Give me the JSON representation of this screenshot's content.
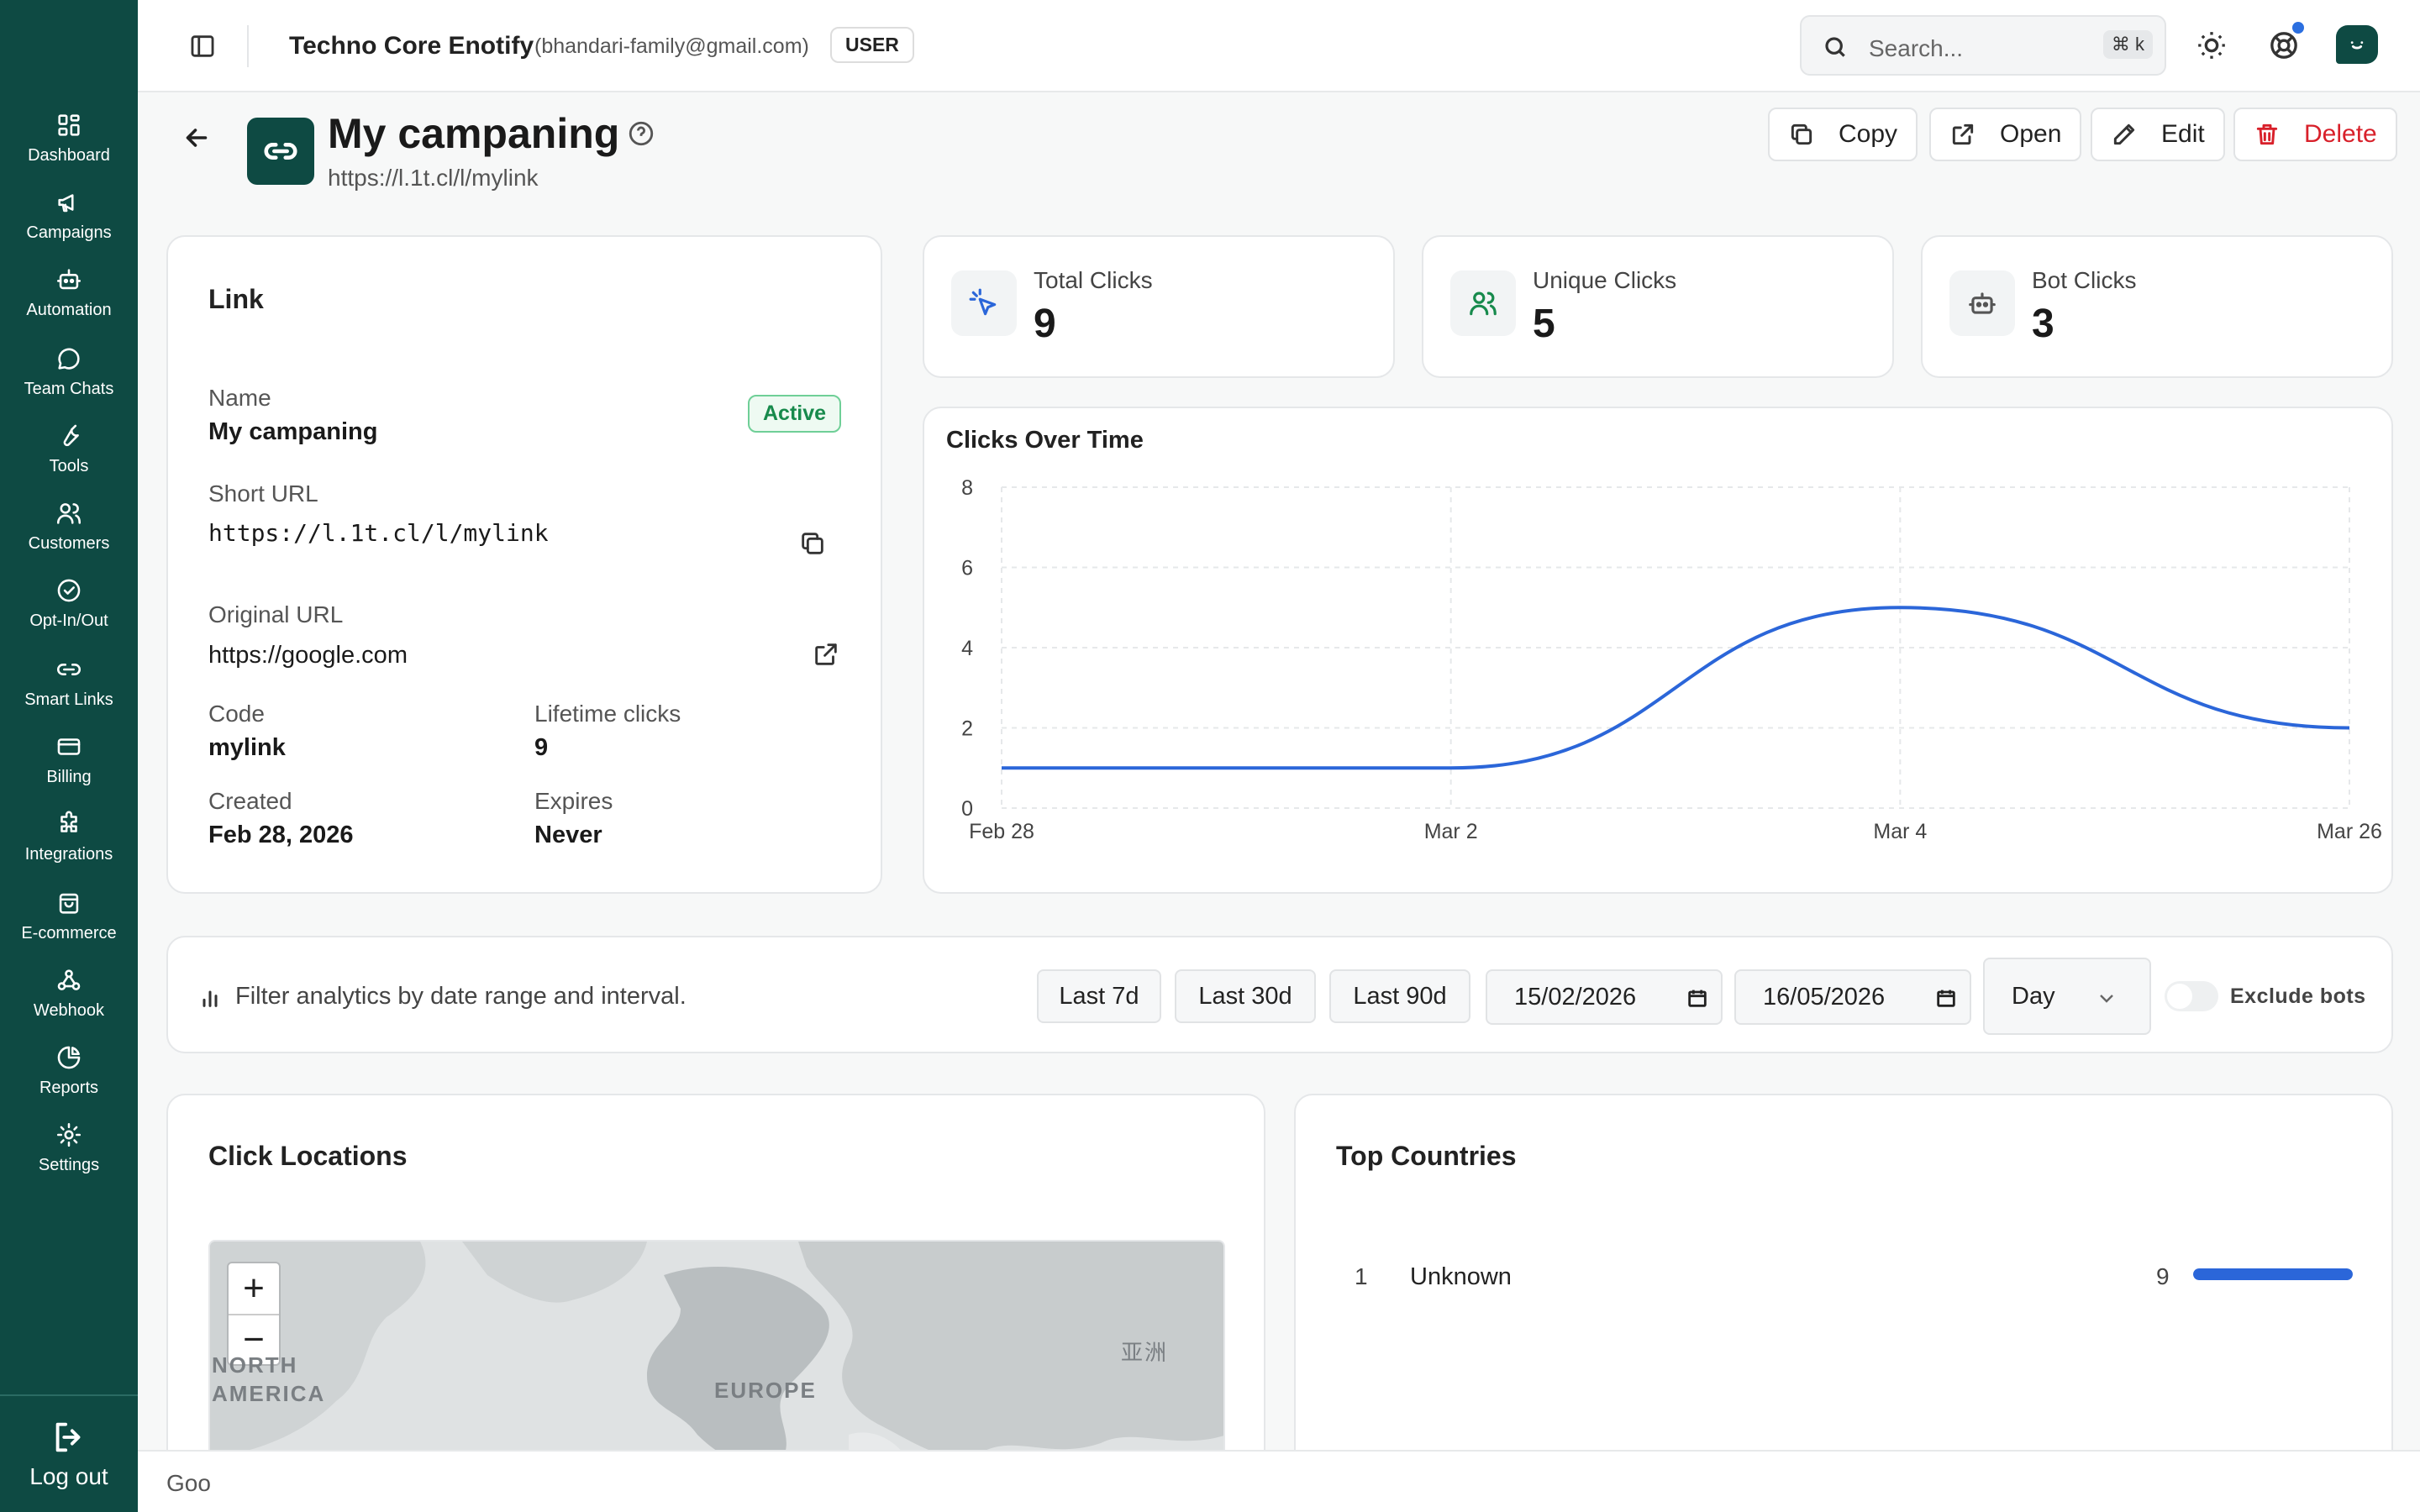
{
  "sidebar": {
    "items": [
      {
        "label": "Dashboard",
        "icon": "dashboard-icon"
      },
      {
        "label": "Campaigns",
        "icon": "megaphone-icon"
      },
      {
        "label": "Automation",
        "icon": "bot-icon"
      },
      {
        "label": "Team Chats",
        "icon": "chat-bubble-icon"
      },
      {
        "label": "Tools",
        "icon": "wrench-icon"
      },
      {
        "label": "Customers",
        "icon": "users-icon"
      },
      {
        "label": "Opt-In/Out",
        "icon": "check-circle-icon"
      },
      {
        "label": "Smart Links",
        "icon": "link-icon"
      },
      {
        "label": "Billing",
        "icon": "credit-card-icon"
      },
      {
        "label": "Integrations",
        "icon": "puzzle-icon"
      },
      {
        "label": "E-commerce",
        "icon": "shopping-bag-icon"
      },
      {
        "label": "Webhook",
        "icon": "webhook-icon"
      },
      {
        "label": "Reports",
        "icon": "pie-chart-icon"
      },
      {
        "label": "Settings",
        "icon": "gear-icon"
      }
    ],
    "logout_label": "Log out"
  },
  "header": {
    "org_name": "Techno Core Enotify",
    "org_email": "(bhandari-family@gmail.com)",
    "role": "USER",
    "search_placeholder": "Search...",
    "search_shortcut": "⌘ k"
  },
  "page": {
    "title": "My campaning",
    "url": "https://l.1t.cl/l/mylink",
    "actions": {
      "copy": "Copy",
      "open": "Open",
      "edit": "Edit",
      "delete": "Delete"
    }
  },
  "link_card": {
    "title": "Link",
    "status": "Active",
    "name_label": "Name",
    "name_value": "My campaning",
    "short_url_label": "Short URL",
    "short_url_value": "https://l.1t.cl/l/mylink",
    "original_url_label": "Original URL",
    "original_url_value": "https://google.com",
    "code_label": "Code",
    "code_value": "mylink",
    "lifetime_label": "Lifetime clicks",
    "lifetime_value": "9",
    "created_label": "Created",
    "created_value": "Feb 28, 2026",
    "expires_label": "Expires",
    "expires_value": "Never"
  },
  "stats": {
    "total": {
      "label": "Total Clicks",
      "value": "9"
    },
    "unique": {
      "label": "Unique Clicks",
      "value": "5"
    },
    "bot": {
      "label": "Bot Clicks",
      "value": "3"
    }
  },
  "chart_data": {
    "type": "line",
    "title": "Clicks Over Time",
    "x": [
      "Feb 28",
      "Mar 2",
      "Mar 4",
      "Mar 26"
    ],
    "series": [
      {
        "values": [
          1,
          1,
          5,
          2
        ]
      }
    ],
    "y_ticks": [
      0,
      2,
      4,
      6,
      8
    ],
    "ylim": [
      0,
      8
    ],
    "grid": true,
    "line_color": "#2b66d9"
  },
  "filters": {
    "description": "Filter analytics by date range and interval.",
    "presets": [
      "Last 7d",
      "Last 30d",
      "Last 90d"
    ],
    "date_from": "15/02/2026",
    "date_to": "16/05/2026",
    "interval": "Day",
    "exclude_bots_label": "Exclude bots",
    "exclude_bots": false
  },
  "locations": {
    "title": "Click Locations",
    "zoom_in": "+",
    "zoom_out": "−",
    "map_labels": [
      "NORTH AMERICA",
      "EUROPE",
      "亚洲"
    ]
  },
  "top_countries": {
    "title": "Top Countries",
    "rows": [
      {
        "rank": "1",
        "name": "Unknown",
        "count": "9",
        "share": 1.0
      }
    ]
  },
  "footer": {
    "text": "Goo"
  },
  "colors": {
    "sidebar": "#0e4a43",
    "accent": "#2b66d9",
    "danger": "#d8202a",
    "success": "#178a4c"
  }
}
